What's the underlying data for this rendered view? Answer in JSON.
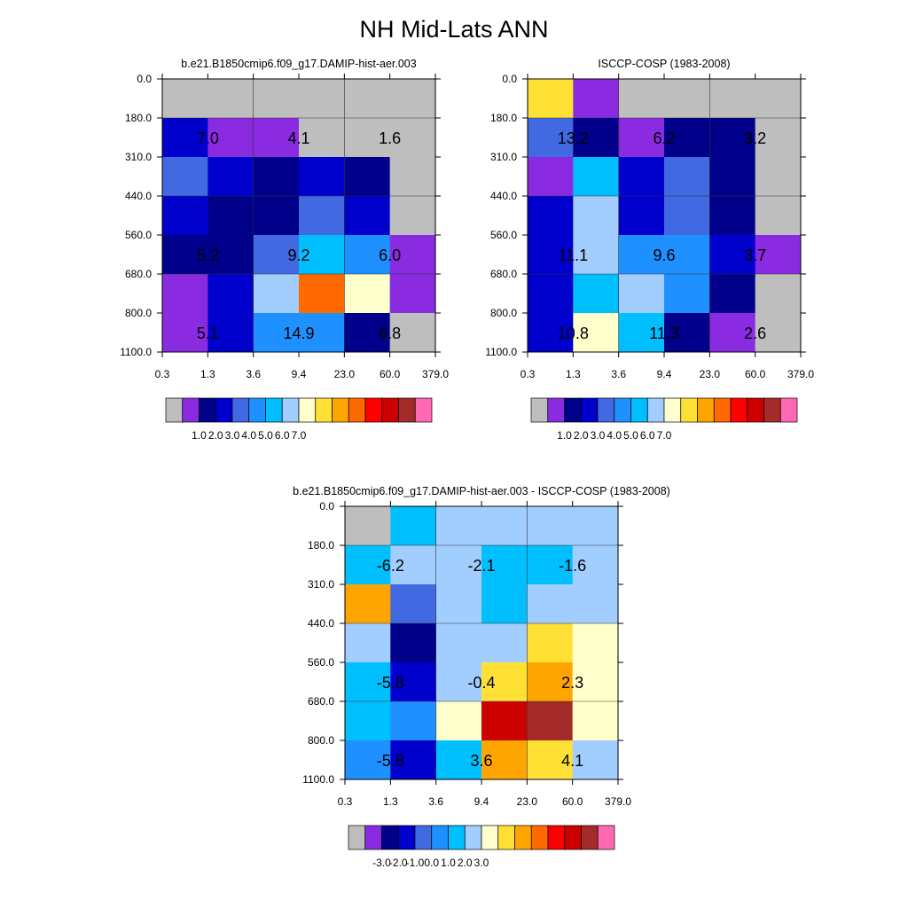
{
  "figure": {
    "title": "NH Mid-Lats ANN"
  },
  "chart_data": [
    {
      "type": "heatmap",
      "title": "b.e21.B1850cmip6.f09_g17.DAMIP-hist-aer.003",
      "x_ticks": [
        "0.3",
        "1.3",
        "3.6",
        "9.4",
        "23.0",
        "60.0",
        "379.0"
      ],
      "y_ticks": [
        "0.0",
        "180.0",
        "310.0",
        "440.0",
        "560.0",
        "680.0",
        "800.0",
        "1100.0"
      ],
      "cell_colors": [
        [
          "#bebebe",
          "#bebebe",
          "#bebebe",
          "#bebebe",
          "#bebebe",
          "#bebebe"
        ],
        [
          "#0000cd",
          "#8a2be2",
          "#8a2be2",
          "#bebebe",
          "#bebebe",
          "#bebebe"
        ],
        [
          "#4169e1",
          "#0000cd",
          "#00008b",
          "#0000cd",
          "#00008b",
          "#bebebe"
        ],
        [
          "#0000cd",
          "#00008b",
          "#00008b",
          "#4169e1",
          "#0000cd",
          "#bebebe"
        ],
        [
          "#00008b",
          "#00008b",
          "#4169e1",
          "#00bfff",
          "#1e90ff",
          "#8a2be2"
        ],
        [
          "#8a2be2",
          "#0000cd",
          "#a2cdff",
          "#ff6a00",
          "#ffffcc",
          "#8a2be2"
        ],
        [
          "#8a2be2",
          "#0000cd",
          "#1e90ff",
          "#1e90ff",
          "#00008b",
          "#bebebe"
        ]
      ],
      "box_labels": [
        "7.0",
        "4.1",
        "1.6",
        "5.2",
        "9.2",
        "6.0",
        "5.1",
        "14.9",
        "6.8"
      ],
      "colorbar_colors": [
        "#bebebe",
        "#8a2be2",
        "#00008b",
        "#0000cd",
        "#4169e1",
        "#1e90ff",
        "#00bfff",
        "#a2cdff",
        "#ffffcc",
        "#ffe135",
        "#ffa500",
        "#ff6a00",
        "#ff0000",
        "#cd0000",
        "#a52a2a",
        "#ff69b4"
      ],
      "colorbar_labels": [
        "1.0",
        "2.0",
        "3.0",
        "4.0",
        "5.0",
        "6.0",
        "7.0"
      ]
    },
    {
      "type": "heatmap",
      "title": "ISCCP-COSP (1983-2008)",
      "x_ticks": [
        "0.3",
        "1.3",
        "3.6",
        "9.4",
        "23.0",
        "60.0",
        "379.0"
      ],
      "y_ticks": [
        "0.0",
        "180.0",
        "310.0",
        "440.0",
        "560.0",
        "680.0",
        "800.0",
        "1100.0"
      ],
      "cell_colors": [
        [
          "#ffe135",
          "#8a2be2",
          "#bebebe",
          "#bebebe",
          "#bebebe",
          "#bebebe"
        ],
        [
          "#4169e1",
          "#00008b",
          "#8a2be2",
          "#00008b",
          "#00008b",
          "#bebebe"
        ],
        [
          "#8a2be2",
          "#00bfff",
          "#0000cd",
          "#4169e1",
          "#00008b",
          "#bebebe"
        ],
        [
          "#0000cd",
          "#a2cdff",
          "#0000cd",
          "#4169e1",
          "#00008b",
          "#bebebe"
        ],
        [
          "#0000cd",
          "#a2cdff",
          "#1e90ff",
          "#1e90ff",
          "#0000cd",
          "#8a2be2"
        ],
        [
          "#0000cd",
          "#00bfff",
          "#a2cdff",
          "#1e90ff",
          "#00008b",
          "#bebebe"
        ],
        [
          "#0000cd",
          "#ffffcc",
          "#00bfff",
          "#00008b",
          "#8a2be2",
          "#bebebe"
        ]
      ],
      "box_labels": [
        "13.2",
        "6.2",
        "3.2",
        "11.1",
        "9.6",
        "3.7",
        "10.8",
        "11.3",
        "2.6"
      ],
      "colorbar_colors": [
        "#bebebe",
        "#8a2be2",
        "#00008b",
        "#0000cd",
        "#4169e1",
        "#1e90ff",
        "#00bfff",
        "#a2cdff",
        "#ffffcc",
        "#ffe135",
        "#ffa500",
        "#ff6a00",
        "#ff0000",
        "#cd0000",
        "#a52a2a",
        "#ff69b4"
      ],
      "colorbar_labels": [
        "1.0",
        "2.0",
        "3.0",
        "4.0",
        "5.0",
        "6.0",
        "7.0"
      ]
    },
    {
      "type": "heatmap",
      "title": "b.e21.B1850cmip6.f09_g17.DAMIP-hist-aer.003 - ISCCP-COSP (1983-2008)",
      "x_ticks": [
        "0.3",
        "1.3",
        "3.6",
        "9.4",
        "23.0",
        "60.0",
        "379.0"
      ],
      "y_ticks": [
        "0.0",
        "180.0",
        "310.0",
        "440.0",
        "560.0",
        "680.0",
        "800.0",
        "1100.0"
      ],
      "cell_colors": [
        [
          "#bebebe",
          "#00bfff",
          "#a2cdff",
          "#a2cdff",
          "#a2cdff",
          "#a2cdff"
        ],
        [
          "#00bfff",
          "#a2cdff",
          "#a2cdff",
          "#00bfff",
          "#00bfff",
          "#a2cdff"
        ],
        [
          "#ffa500",
          "#4169e1",
          "#a2cdff",
          "#00bfff",
          "#a2cdff",
          "#a2cdff"
        ],
        [
          "#a2cdff",
          "#00008b",
          "#a2cdff",
          "#a2cdff",
          "#ffe135",
          "#ffffcc"
        ],
        [
          "#00bfff",
          "#0000cd",
          "#a2cdff",
          "#ffe135",
          "#ffa500",
          "#ffffcc"
        ],
        [
          "#00bfff",
          "#1e90ff",
          "#ffffcc",
          "#cd0000",
          "#a52a2a",
          "#ffffcc"
        ],
        [
          "#1e90ff",
          "#0000cd",
          "#00bfff",
          "#ffa500",
          "#ffe135",
          "#a2cdff"
        ]
      ],
      "box_labels": [
        "-6.2",
        "-2.1",
        "-1.6",
        "-5.8",
        "-0.4",
        "2.3",
        "-5.8",
        "3.6",
        "4.1"
      ],
      "colorbar_colors": [
        "#bebebe",
        "#8a2be2",
        "#00008b",
        "#0000cd",
        "#4169e1",
        "#1e90ff",
        "#00bfff",
        "#a2cdff",
        "#ffffcc",
        "#ffe135",
        "#ffa500",
        "#ff6a00",
        "#ff0000",
        "#cd0000",
        "#a52a2a",
        "#ff69b4"
      ],
      "colorbar_labels": [
        "-3.0",
        "-2.0",
        "-1.0",
        "0.0",
        "1.0",
        "2.0",
        "3.0"
      ]
    }
  ]
}
